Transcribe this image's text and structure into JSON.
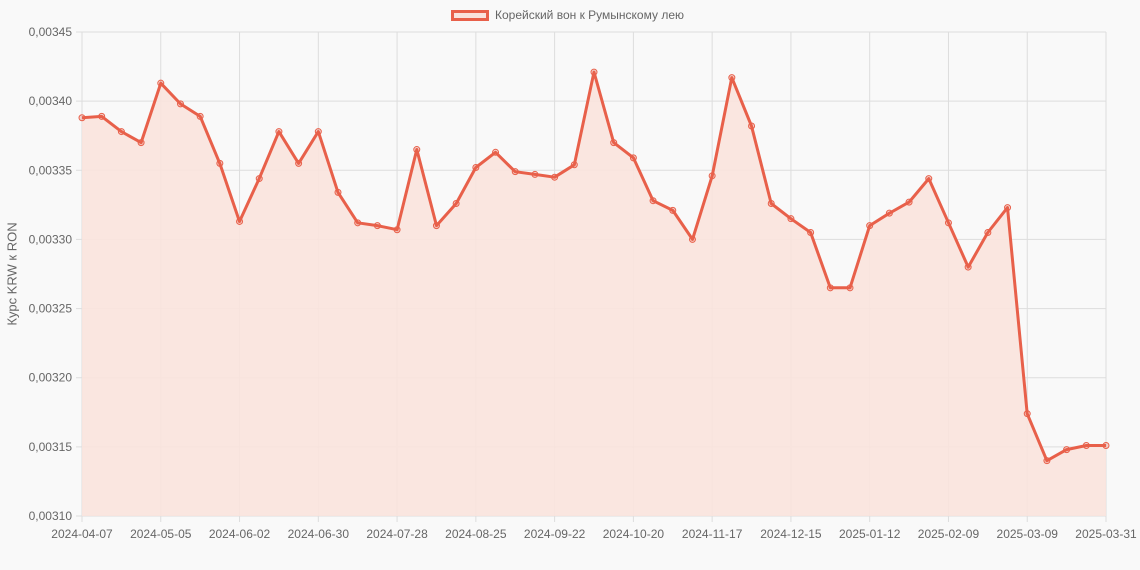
{
  "chart_data": {
    "type": "line",
    "title": "",
    "legend": [
      "Корейский вон к Румынскому лею"
    ],
    "legend_position": "top",
    "xlabel": "",
    "ylabel": "Курс KRW к RON",
    "ylim": [
      0.0031,
      0.00345
    ],
    "y_ticks": [
      "0,00310",
      "0,00315",
      "0,00320",
      "0,00325",
      "0,00330",
      "0,00335",
      "0,00340",
      "0,00345"
    ],
    "x_tick_labels": [
      "2024-04-07",
      "2024-05-05",
      "2024-06-02",
      "2024-06-30",
      "2024-07-28",
      "2024-08-25",
      "2024-09-22",
      "2024-10-20",
      "2024-11-17",
      "2024-12-15",
      "2025-01-12",
      "2025-02-09",
      "2025-03-09",
      "2025-03-31"
    ],
    "grid": true,
    "fill": true,
    "colors": {
      "line": "#e8604a",
      "fill": "#f9e3dd",
      "grid": "#dddddd"
    },
    "x": [
      "2024-04-07",
      "2024-04-14",
      "2024-04-21",
      "2024-04-28",
      "2024-05-05",
      "2024-05-12",
      "2024-05-19",
      "2024-05-26",
      "2024-06-02",
      "2024-06-09",
      "2024-06-16",
      "2024-06-23",
      "2024-06-30",
      "2024-07-07",
      "2024-07-14",
      "2024-07-21",
      "2024-07-28",
      "2024-08-04",
      "2024-08-11",
      "2024-08-18",
      "2024-08-25",
      "2024-09-01",
      "2024-09-08",
      "2024-09-15",
      "2024-09-22",
      "2024-09-29",
      "2024-10-06",
      "2024-10-13",
      "2024-10-20",
      "2024-10-27",
      "2024-11-03",
      "2024-11-10",
      "2024-11-17",
      "2024-11-24",
      "2024-12-01",
      "2024-12-08",
      "2024-12-15",
      "2024-12-22",
      "2024-12-29",
      "2025-01-05",
      "2025-01-12",
      "2025-01-19",
      "2025-01-26",
      "2025-02-02",
      "2025-02-09",
      "2025-02-16",
      "2025-02-23",
      "2025-03-02",
      "2025-03-09",
      "2025-03-16",
      "2025-03-23",
      "2025-03-30",
      "2025-03-31"
    ],
    "series": [
      {
        "name": "Корейский вон к Румынскому лею",
        "values": [
          0.003388,
          0.003389,
          0.003378,
          0.00337,
          0.003413,
          0.003398,
          0.003389,
          0.003355,
          0.003313,
          0.003344,
          0.003378,
          0.003355,
          0.003378,
          0.003334,
          0.003312,
          0.00331,
          0.003307,
          0.003365,
          0.00331,
          0.003326,
          0.003352,
          0.003363,
          0.003349,
          0.003347,
          0.003345,
          0.003354,
          0.003421,
          0.00337,
          0.003359,
          0.003328,
          0.003321,
          0.0033,
          0.003346,
          0.003417,
          0.003382,
          0.003326,
          0.003315,
          0.003305,
          0.003265,
          0.003265,
          0.00331,
          0.003319,
          0.003327,
          0.003344,
          0.003312,
          0.00328,
          0.003305,
          0.003323,
          0.003174,
          0.00314,
          0.003148,
          0.003151,
          0.003151
        ]
      }
    ]
  }
}
